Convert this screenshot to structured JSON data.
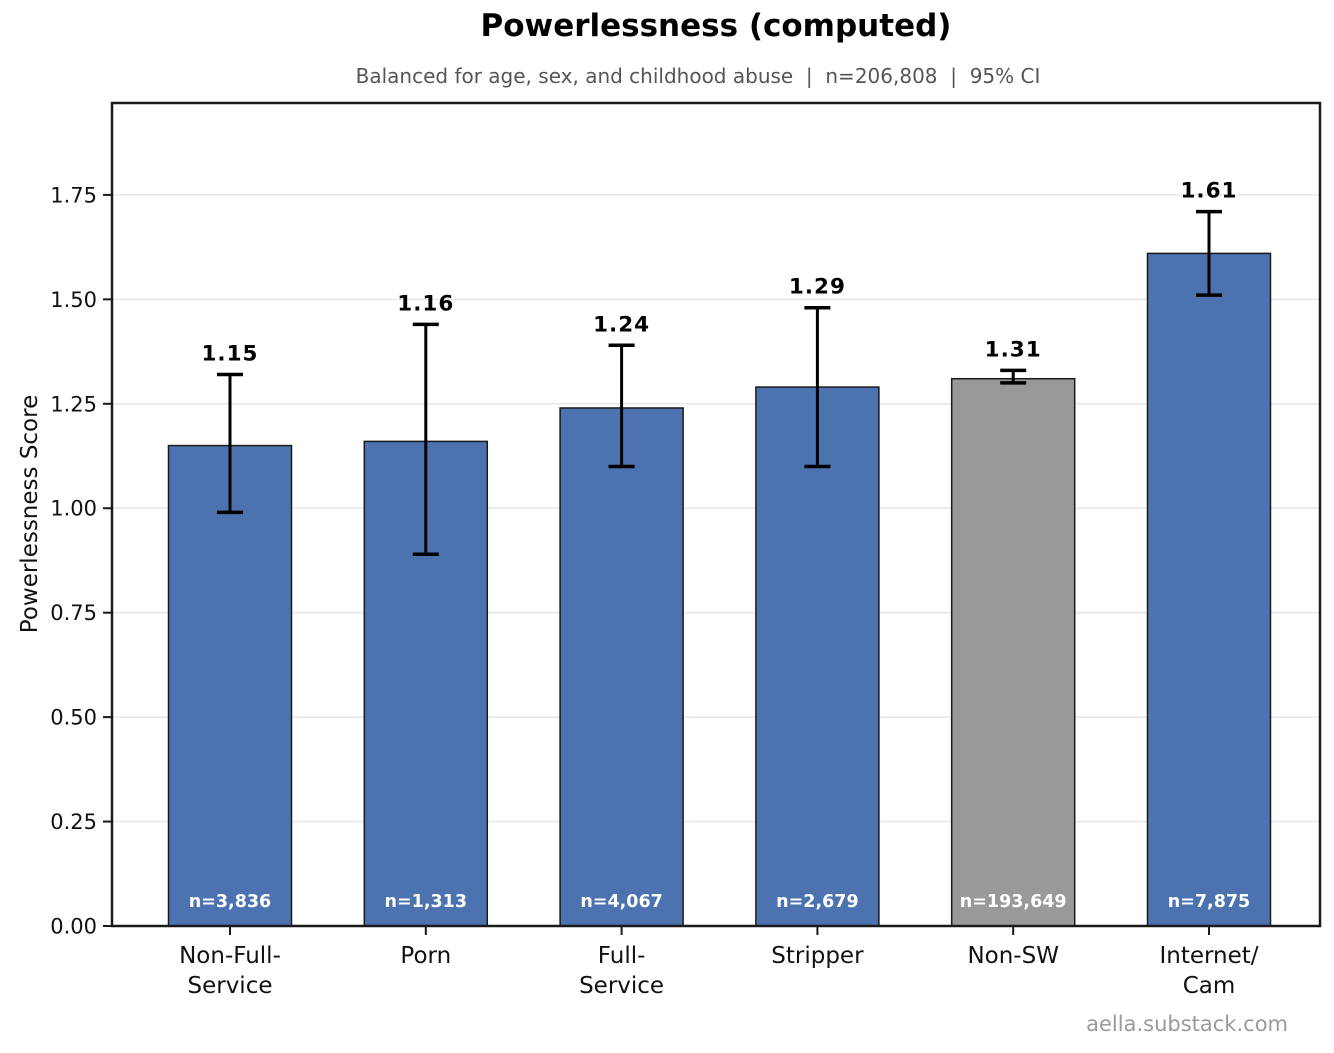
{
  "header": {
    "title": "Powerlessness (computed)",
    "subtitle": "Balanced for age, sex, and childhood abuse  |  n=206,808  |  95% CI"
  },
  "footer": {
    "credit": "aella.substack.com"
  },
  "chart_data": {
    "type": "bar",
    "title": "Powerlessness (computed)",
    "subtitle": "Balanced for age, sex, and childhood abuse  |  n=206,808  |  95% CI",
    "xlabel": "",
    "ylabel": "Powerlessness Score",
    "ylim": [
      0,
      1.97
    ],
    "yticks": [
      0,
      0.25,
      0.5,
      0.75,
      1.0,
      1.25,
      1.5,
      1.75
    ],
    "grid": true,
    "legend": "none",
    "categories": [
      [
        "Non-Full-",
        "Service"
      ],
      [
        "Porn"
      ],
      [
        "Full-",
        "Service"
      ],
      [
        "Stripper"
      ],
      [
        "Non-SW"
      ],
      [
        "Internet/",
        "Cam"
      ]
    ],
    "values": [
      1.15,
      1.16,
      1.24,
      1.29,
      1.31,
      1.61
    ],
    "value_labels": [
      "1.15",
      "1.16",
      "1.24",
      "1.29",
      "1.31",
      "1.61"
    ],
    "ci_low": [
      0.99,
      0.89,
      1.1,
      1.1,
      1.3,
      1.51
    ],
    "ci_high": [
      1.32,
      1.44,
      1.39,
      1.48,
      1.33,
      1.71
    ],
    "n_labels": [
      "n=3,836",
      "n=1,313",
      "n=4,067",
      "n=2,679",
      "n=193,649",
      "n=7,875"
    ],
    "bar_colors": [
      "#4c72b0",
      "#4c72b0",
      "#4c72b0",
      "#4c72b0",
      "#999999",
      "#4c72b0"
    ],
    "colors": {
      "bar_blue": "#4c72b0",
      "bar_gray": "#999999",
      "bar_edge": "#1a1a1a",
      "error_bar": "#000000",
      "grid_line": "#e7e7e7",
      "axis_frame": "#1a1a1a",
      "tick_text": "#111111",
      "subtitle_text": "#555555",
      "footer_text": "#9a9a9a",
      "n_label_text": "#ffffff"
    }
  }
}
